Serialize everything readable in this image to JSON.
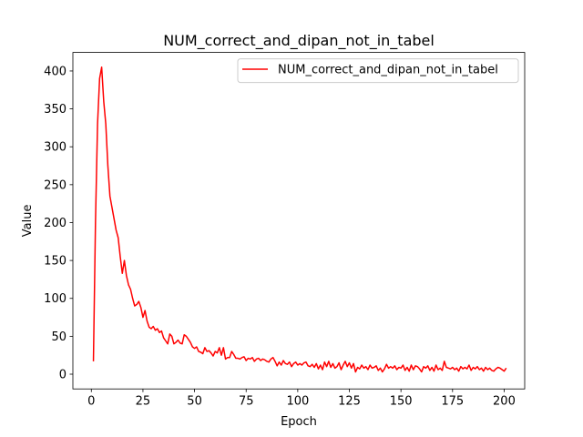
{
  "chart_data": {
    "type": "line",
    "title": "NUM_correct_and_dipan_not_in_tabel",
    "xlabel": "Epoch",
    "ylabel": "Value",
    "xlim": [
      -8.95,
      209.95
    ],
    "ylim": [
      -19.45,
      424.45
    ],
    "xticks": [
      0,
      25,
      50,
      75,
      100,
      125,
      150,
      175,
      200
    ],
    "yticks": [
      0,
      50,
      100,
      150,
      200,
      250,
      300,
      350,
      400
    ],
    "legend_position": "top-right",
    "series": [
      {
        "name": "NUM_correct_and_dipan_not_in_tabel",
        "color": "#ff0000",
        "x": [
          1,
          2,
          3,
          4,
          5,
          6,
          7,
          8,
          9,
          10,
          11,
          12,
          13,
          14,
          15,
          16,
          17,
          18,
          19,
          20,
          21,
          22,
          23,
          24,
          25,
          26,
          27,
          28,
          29,
          30,
          31,
          32,
          33,
          34,
          35,
          36,
          37,
          38,
          39,
          40,
          41,
          42,
          43,
          44,
          45,
          46,
          47,
          48,
          49,
          50,
          51,
          52,
          53,
          54,
          55,
          56,
          57,
          58,
          59,
          60,
          61,
          62,
          63,
          64,
          65,
          66,
          67,
          68,
          69,
          70,
          71,
          72,
          73,
          74,
          75,
          76,
          77,
          78,
          79,
          80,
          81,
          82,
          83,
          84,
          85,
          86,
          87,
          88,
          89,
          90,
          91,
          92,
          93,
          94,
          95,
          96,
          97,
          98,
          99,
          100,
          101,
          102,
          103,
          104,
          105,
          106,
          107,
          108,
          109,
          110,
          111,
          112,
          113,
          114,
          115,
          116,
          117,
          118,
          119,
          120,
          121,
          122,
          123,
          124,
          125,
          126,
          127,
          128,
          129,
          130,
          131,
          132,
          133,
          134,
          135,
          136,
          137,
          138,
          139,
          140,
          141,
          142,
          143,
          144,
          145,
          146,
          147,
          148,
          149,
          150,
          151,
          152,
          153,
          154,
          155,
          156,
          157,
          158,
          159,
          160,
          161,
          162,
          163,
          164,
          165,
          166,
          167,
          168,
          169,
          170,
          171,
          172,
          173,
          174,
          175,
          176,
          177,
          178,
          179,
          180,
          181,
          182,
          183,
          184,
          185,
          186,
          187,
          188,
          189,
          190,
          191,
          192,
          193,
          194,
          195,
          196,
          197,
          198,
          199,
          200,
          201
        ],
        "values": [
          17,
          200,
          330,
          390,
          405,
          360,
          330,
          275,
          235,
          220,
          205,
          190,
          180,
          155,
          133,
          150,
          130,
          118,
          112,
          100,
          90,
          92,
          96,
          88,
          75,
          84,
          70,
          62,
          60,
          63,
          58,
          60,
          55,
          57,
          48,
          44,
          40,
          53,
          50,
          40,
          42,
          45,
          41,
          40,
          52,
          50,
          46,
          42,
          36,
          34,
          36,
          30,
          29,
          27,
          35,
          30,
          31,
          28,
          24,
          30,
          28,
          35,
          25,
          35,
          20,
          22,
          22,
          30,
          26,
          21,
          21,
          20,
          22,
          23,
          18,
          21,
          20,
          22,
          17,
          20,
          21,
          18,
          20,
          19,
          17,
          16,
          20,
          22,
          17,
          11,
          16,
          12,
          18,
          14,
          13,
          16,
          10,
          14,
          16,
          12,
          14,
          12,
          15,
          16,
          11,
          10,
          13,
          9,
          14,
          7,
          12,
          6,
          16,
          10,
          17,
          9,
          14,
          8,
          10,
          15,
          6,
          12,
          17,
          10,
          15,
          8,
          14,
          3,
          9,
          7,
          12,
          8,
          10,
          6,
          12,
          8,
          9,
          11,
          5,
          8,
          3,
          7,
          13,
          8,
          10,
          8,
          11,
          6,
          9,
          8,
          12,
          5,
          9,
          4,
          12,
          6,
          11,
          10,
          7,
          3,
          10,
          8,
          11,
          5,
          9,
          4,
          12,
          6,
          8,
          5,
          17,
          9,
          8,
          7,
          9,
          6,
          8,
          4,
          10,
          7,
          9,
          7,
          12,
          5,
          9,
          7,
          10,
          6,
          8,
          4,
          9,
          6,
          8,
          5,
          4,
          7,
          9,
          8,
          6,
          4,
          8
        ]
      }
    ]
  }
}
